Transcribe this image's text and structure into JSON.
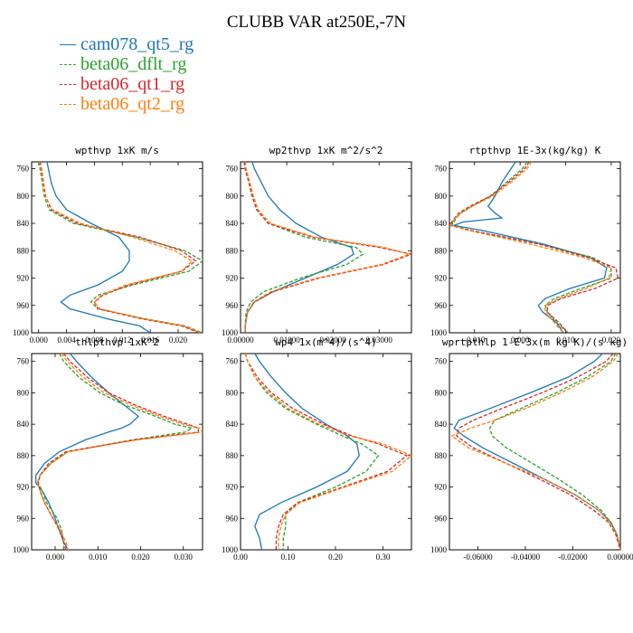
{
  "title": "CLUBB VAR at250E,-7N",
  "legend": [
    {
      "name": "cam078_qt5_rg",
      "color": "#1f77b4",
      "dash": false
    },
    {
      "name": "beta06_dflt_rg",
      "color": "#2ca02c",
      "dash": true
    },
    {
      "name": "beta06_qt1_rg",
      "color": "#d62728",
      "dash": true
    },
    {
      "name": "beta06_qt2_rg",
      "color": "#ff7f0e",
      "dash": true
    }
  ],
  "chart_data": [
    {
      "type": "line",
      "title": "wpthvp  1xK m/s",
      "ylim": [
        1000,
        750
      ],
      "xlim": [
        -0.001,
        0.0235
      ],
      "yticks": [
        760,
        800,
        840,
        880,
        920,
        960,
        1000
      ],
      "xticks": [
        0.0,
        0.004,
        0.008,
        0.012,
        0.016,
        0.02
      ],
      "xtick_labels": [
        "0.000",
        "0.004",
        "0.008",
        "0.012",
        "0.016",
        "0.020"
      ],
      "y": [
        750,
        760,
        780,
        800,
        820,
        840,
        860,
        880,
        895,
        910,
        930,
        945,
        955,
        965,
        980,
        990,
        1000
      ],
      "series": [
        {
          "name": "cam078_qt5_rg",
          "x": [
            0.0012,
            0.0014,
            0.0018,
            0.0025,
            0.004,
            0.0075,
            0.0115,
            0.013,
            0.013,
            0.012,
            0.0085,
            0.0045,
            0.0032,
            0.0045,
            0.01,
            0.0145,
            0.016
          ]
        },
        {
          "name": "beta06_dflt_rg",
          "x": [
            0.0,
            0.0002,
            0.0005,
            0.0008,
            0.0015,
            0.005,
            0.014,
            0.021,
            0.0235,
            0.0215,
            0.0135,
            0.0085,
            0.0075,
            0.0085,
            0.0155,
            0.021,
            0.0235
          ]
        },
        {
          "name": "beta06_qt1_rg",
          "x": [
            0.0002,
            0.0004,
            0.0007,
            0.001,
            0.0018,
            0.0055,
            0.0145,
            0.0205,
            0.0225,
            0.0205,
            0.013,
            0.0092,
            0.008,
            0.0085,
            0.015,
            0.0205,
            0.023
          ]
        },
        {
          "name": "beta06_qt2_rg",
          "x": [
            0.0001,
            0.0003,
            0.0006,
            0.0009,
            0.002,
            0.006,
            0.0135,
            0.0195,
            0.022,
            0.0205,
            0.0125,
            0.009,
            0.008,
            0.0088,
            0.0152,
            0.0208,
            0.0232
          ]
        }
      ]
    },
    {
      "type": "line",
      "title": "wp2thvp  1xK m^2/s^2",
      "ylim": [
        1000,
        750
      ],
      "xlim": [
        0.0,
        0.037
      ],
      "yticks": [
        760,
        800,
        840,
        880,
        920,
        960,
        1000
      ],
      "xticks": [
        0.0,
        0.01,
        0.02,
        0.03
      ],
      "xtick_labels": [
        "0.00000",
        "0.01000",
        "0.02000",
        "0.03000"
      ],
      "y": [
        750,
        760,
        780,
        800,
        820,
        840,
        860,
        875,
        885,
        900,
        920,
        940,
        955,
        970,
        990,
        1000
      ],
      "series": [
        {
          "name": "cam078_qt5_rg",
          "x": [
            0.0025,
            0.003,
            0.0045,
            0.006,
            0.0085,
            0.012,
            0.0175,
            0.024,
            0.0245,
            0.021,
            0.014,
            0.007,
            0.003,
            0.0015,
            0.001,
            0.001
          ]
        },
        {
          "name": "beta06_dflt_rg",
          "x": [
            0.0008,
            0.001,
            0.0018,
            0.0025,
            0.0035,
            0.006,
            0.014,
            0.025,
            0.0265,
            0.023,
            0.013,
            0.005,
            0.0022,
            0.0012,
            0.001,
            0.001
          ]
        },
        {
          "name": "beta06_qt1_rg",
          "x": [
            0.0008,
            0.001,
            0.0018,
            0.0025,
            0.0035,
            0.006,
            0.0155,
            0.03,
            0.037,
            0.031,
            0.017,
            0.007,
            0.003,
            0.0015,
            0.001,
            0.001
          ]
        },
        {
          "name": "beta06_qt2_rg",
          "x": [
            0.001,
            0.0012,
            0.002,
            0.0028,
            0.0038,
            0.0065,
            0.016,
            0.031,
            0.0365,
            0.0305,
            0.0165,
            0.0065,
            0.0028,
            0.0015,
            0.001,
            0.001
          ]
        }
      ]
    },
    {
      "type": "line",
      "title": "rtpthvp  1E-3x(kg/kg) K",
      "ylim": [
        1000,
        750
      ],
      "xlim": [
        -0.0155,
        0.022
      ],
      "yticks": [
        760,
        800,
        840,
        880,
        920,
        960,
        1000
      ],
      "xticks": [
        -0.01,
        0.0,
        0.01,
        0.02
      ],
      "xtick_labels": [
        "-0.010",
        "0.000",
        "0.010",
        "0.020"
      ],
      "y": [
        750,
        760,
        780,
        800,
        815,
        825,
        832,
        838,
        843,
        850,
        870,
        890,
        905,
        920,
        935,
        950,
        960,
        970,
        985,
        1000
      ],
      "series": [
        {
          "name": "cam078_qt5_rg",
          "x": [
            -0.001,
            -0.002,
            -0.004,
            -0.0055,
            -0.007,
            -0.0055,
            -0.004,
            -0.0125,
            -0.0145,
            -0.0085,
            0.005,
            0.0155,
            0.019,
            0.0185,
            0.011,
            0.0055,
            0.004,
            0.005,
            0.008,
            0.0095
          ]
        },
        {
          "name": "beta06_dflt_rg",
          "x": [
            0.0015,
            0.0005,
            -0.003,
            -0.0065,
            -0.0105,
            -0.013,
            -0.014,
            -0.0145,
            -0.015,
            -0.011,
            0.004,
            0.016,
            0.02,
            0.02,
            0.0135,
            0.0075,
            0.0055,
            0.006,
            0.008,
            0.0105
          ]
        },
        {
          "name": "beta06_qt1_rg",
          "x": [
            0.002,
            0.001,
            -0.0025,
            -0.0065,
            -0.011,
            -0.0135,
            -0.0143,
            -0.015,
            -0.0155,
            -0.011,
            0.004,
            0.015,
            0.021,
            0.0215,
            0.0165,
            0.009,
            0.006,
            0.006,
            0.0085,
            0.0105
          ]
        },
        {
          "name": "beta06_qt2_rg",
          "x": [
            0.0025,
            0.0015,
            -0.002,
            -0.006,
            -0.0105,
            -0.013,
            -0.0142,
            -0.0148,
            -0.0152,
            -0.0115,
            0.002,
            0.014,
            0.02,
            0.0195,
            0.0145,
            0.0085,
            0.0055,
            0.0055,
            0.0075,
            0.0095
          ]
        }
      ]
    },
    {
      "type": "line",
      "title": "thlpthvp  1xK^2",
      "ylim": [
        1000,
        750
      ],
      "xlim": [
        -0.0055,
        0.0345
      ],
      "yticks": [
        760,
        800,
        840,
        880,
        920,
        960,
        1000
      ],
      "xticks": [
        0.0,
        0.01,
        0.02,
        0.03
      ],
      "xtick_labels": [
        "0.000",
        "0.010",
        "0.020",
        "0.030"
      ],
      "y": [
        750,
        760,
        780,
        800,
        815,
        830,
        840,
        845,
        850,
        860,
        875,
        890,
        905,
        915,
        925,
        940,
        960,
        975,
        990,
        1000
      ],
      "series": [
        {
          "name": "cam078_qt5_rg",
          "x": [
            0.0035,
            0.005,
            0.0085,
            0.0125,
            0.016,
            0.0195,
            0.0175,
            0.0155,
            0.0125,
            0.007,
            0.001,
            -0.0025,
            -0.0045,
            -0.0045,
            -0.003,
            -0.0015,
            0.0,
            0.001,
            0.002,
            0.003
          ]
        },
        {
          "name": "beta06_dflt_rg",
          "x": [
            0.001,
            0.002,
            0.0055,
            0.0105,
            0.016,
            0.0235,
            0.028,
            0.032,
            0.0305,
            0.018,
            0.003,
            -0.001,
            -0.0035,
            -0.004,
            -0.003,
            -0.002,
            0.0005,
            0.0015,
            0.002,
            0.002
          ]
        },
        {
          "name": "beta06_qt1_rg",
          "x": [
            0.002,
            0.0035,
            0.0075,
            0.0125,
            0.0185,
            0.0255,
            0.031,
            0.0335,
            0.0335,
            0.0185,
            0.0025,
            -0.0015,
            -0.0035,
            -0.004,
            -0.0035,
            -0.0025,
            -0.0005,
            0.001,
            0.002,
            0.0025
          ]
        },
        {
          "name": "beta06_qt2_rg",
          "x": [
            0.0015,
            0.0028,
            0.0065,
            0.0115,
            0.0175,
            0.0245,
            0.03,
            0.0338,
            0.0345,
            0.019,
            0.003,
            -0.001,
            -0.0035,
            -0.0042,
            -0.0035,
            -0.0025,
            -0.0005,
            0.0012,
            0.0025,
            0.003
          ]
        }
      ]
    },
    {
      "type": "line",
      "title": "wp4  1x(m^4)/(s^4)",
      "ylim": [
        1000,
        750
      ],
      "xlim": [
        0.0,
        0.36
      ],
      "yticks": [
        760,
        800,
        840,
        880,
        920,
        960,
        1000
      ],
      "xticks": [
        0.0,
        0.1,
        0.2,
        0.3
      ],
      "xtick_labels": [
        "0.00",
        "0.10",
        "0.20",
        "0.30"
      ],
      "y": [
        750,
        760,
        780,
        800,
        820,
        840,
        855,
        865,
        880,
        900,
        920,
        940,
        955,
        970,
        985,
        1000
      ],
      "series": [
        {
          "name": "cam078_qt5_rg",
          "x": [
            0.03,
            0.04,
            0.065,
            0.095,
            0.13,
            0.18,
            0.225,
            0.245,
            0.25,
            0.225,
            0.16,
            0.085,
            0.04,
            0.03,
            0.04,
            0.045
          ]
        },
        {
          "name": "beta06_dflt_rg",
          "x": [
            0.01,
            0.015,
            0.03,
            0.055,
            0.095,
            0.16,
            0.215,
            0.255,
            0.29,
            0.265,
            0.2,
            0.12,
            0.095,
            0.095,
            0.09,
            0.09
          ]
        },
        {
          "name": "beta06_qt1_rg",
          "x": [
            0.01,
            0.015,
            0.035,
            0.065,
            0.11,
            0.175,
            0.235,
            0.29,
            0.35,
            0.31,
            0.215,
            0.12,
            0.09,
            0.08,
            0.075,
            0.075
          ]
        },
        {
          "name": "beta06_qt2_rg",
          "x": [
            0.01,
            0.015,
            0.03,
            0.06,
            0.1,
            0.165,
            0.23,
            0.3,
            0.36,
            0.32,
            0.22,
            0.125,
            0.095,
            0.085,
            0.08,
            0.08
          ]
        }
      ]
    },
    {
      "type": "line",
      "title": "wprtpthlp  1-E-3x(m kg K)/(s kg)",
      "ylim": [
        1000,
        750
      ],
      "xlim": [
        -0.072,
        0.0
      ],
      "yticks": [
        760,
        800,
        840,
        880,
        920,
        960,
        1000
      ],
      "xticks": [
        -0.06,
        -0.04,
        -0.02,
        0.0
      ],
      "xtick_labels": [
        "-0.06000",
        "-0.04000",
        "-0.02000",
        "0.00000"
      ],
      "y": [
        750,
        760,
        780,
        800,
        820,
        835,
        845,
        855,
        870,
        890,
        910,
        930,
        950,
        965,
        980,
        1000
      ],
      "series": [
        {
          "name": "cam078_qt5_rg",
          "x": [
            -0.0075,
            -0.011,
            -0.022,
            -0.038,
            -0.055,
            -0.068,
            -0.07,
            -0.066,
            -0.058,
            -0.045,
            -0.032,
            -0.019,
            -0.009,
            -0.004,
            -0.0015,
            0.0
          ]
        },
        {
          "name": "beta06_dflt_rg",
          "x": [
            -0.002,
            -0.004,
            -0.014,
            -0.027,
            -0.042,
            -0.053,
            -0.055,
            -0.054,
            -0.048,
            -0.037,
            -0.026,
            -0.016,
            -0.008,
            -0.004,
            -0.0015,
            0.0
          ]
        },
        {
          "name": "beta06_qt1_rg",
          "x": [
            -0.003,
            -0.006,
            -0.018,
            -0.033,
            -0.05,
            -0.062,
            -0.068,
            -0.069,
            -0.062,
            -0.048,
            -0.034,
            -0.021,
            -0.011,
            -0.005,
            -0.002,
            0.0
          ]
        },
        {
          "name": "beta06_qt2_rg",
          "x": [
            -0.001,
            -0.003,
            -0.012,
            -0.025,
            -0.04,
            -0.053,
            -0.063,
            -0.071,
            -0.064,
            -0.048,
            -0.032,
            -0.019,
            -0.009,
            -0.0045,
            -0.0015,
            0.0
          ]
        }
      ]
    }
  ]
}
